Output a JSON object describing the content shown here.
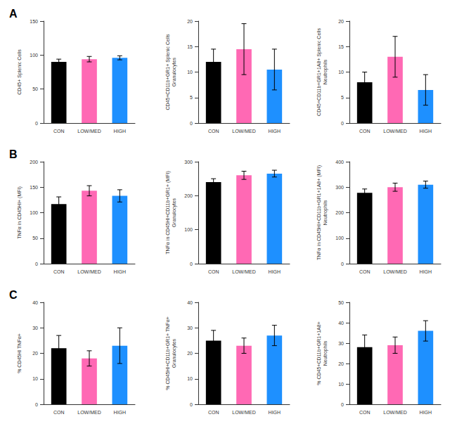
{
  "chart_data": [
    {
      "type": "bar",
      "annotation": "A",
      "ylabel": "CD45+ Splenic Cells",
      "categories": [
        "CON",
        "LOW/MED",
        "HIGH"
      ],
      "colors": [
        "#000000",
        "#FF69B4",
        "#1E90FF"
      ],
      "values": [
        90,
        94,
        96
      ],
      "errors": [
        4,
        4,
        3
      ],
      "ylim": [
        0,
        150
      ],
      "yticks": [
        0,
        50,
        100,
        150
      ],
      "grid": false
    },
    {
      "type": "bar",
      "ylabel": "CD45+CD11b+GR1+ Splenic Cells\nGranulocytes",
      "categories": [
        "CON",
        "LOW/MED",
        "HIGH"
      ],
      "colors": [
        "#000000",
        "#FF69B4",
        "#1E90FF"
      ],
      "values": [
        12,
        14.5,
        10.5
      ],
      "errors": [
        2.5,
        5,
        4
      ],
      "ylim": [
        0,
        20
      ],
      "yticks": [
        0,
        5,
        10,
        15,
        20
      ],
      "grid": false
    },
    {
      "type": "bar",
      "ylabel": "CD45+CD11b+GR1+1A8+ Splenic Cells\nNeutrophils",
      "categories": [
        "CON",
        "LOW/MED",
        "HIGH"
      ],
      "colors": [
        "#000000",
        "#FF69B4",
        "#1E90FF"
      ],
      "values": [
        8,
        13,
        6.5
      ],
      "errors": [
        2,
        4,
        3
      ],
      "ylim": [
        0,
        20
      ],
      "yticks": [
        0,
        5,
        10,
        15,
        20
      ],
      "grid": false
    },
    {
      "type": "bar",
      "annotation": "B",
      "ylabel": "TNFα in CD45HI+ (MFI)",
      "categories": [
        "CON",
        "LOW/MED",
        "HIGH"
      ],
      "colors": [
        "#000000",
        "#FF69B4",
        "#1E90FF"
      ],
      "values": [
        117,
        143,
        133
      ],
      "errors": [
        14,
        10,
        12
      ],
      "ylim": [
        0,
        200
      ],
      "yticks": [
        0,
        50,
        100,
        150,
        200
      ],
      "grid": false
    },
    {
      "type": "bar",
      "ylabel": "TNFα in CD45HI+CD11b+GR1+ (MFI)\nGranulocytes",
      "categories": [
        "CON",
        "LOW/MED",
        "HIGH"
      ],
      "colors": [
        "#000000",
        "#FF69B4",
        "#1E90FF"
      ],
      "values": [
        240,
        260,
        265
      ],
      "errors": [
        10,
        12,
        10
      ],
      "ylim": [
        0,
        300
      ],
      "yticks": [
        0,
        100,
        200,
        300
      ],
      "grid": false
    },
    {
      "type": "bar",
      "ylabel": "TNFα in CD45HI+CD11b+GR1+1A8+ (MFI)\nNeutrophils",
      "categories": [
        "CON",
        "LOW/MED",
        "HIGH"
      ],
      "colors": [
        "#000000",
        "#FF69B4",
        "#1E90FF"
      ],
      "values": [
        278,
        300,
        310
      ],
      "errors": [
        15,
        16,
        14
      ],
      "ylim": [
        0,
        400
      ],
      "yticks": [
        0,
        100,
        200,
        300,
        400
      ],
      "grid": false
    },
    {
      "type": "bar",
      "annotation": "C",
      "ylabel": "% CD45HI TNFα+",
      "categories": [
        "CON",
        "LOW/MED",
        "HIGH"
      ],
      "colors": [
        "#000000",
        "#FF69B4",
        "#1E90FF"
      ],
      "values": [
        22,
        18,
        23
      ],
      "errors": [
        5,
        3,
        7
      ],
      "ylim": [
        0,
        40
      ],
      "yticks": [
        0,
        10,
        20,
        30,
        40
      ],
      "grid": false
    },
    {
      "type": "bar",
      "ylabel": "% CD45HI+CD11b+GR1+ TNFα+\nGranulocytes",
      "categories": [
        "CON",
        "LOW/MED",
        "HIGH"
      ],
      "colors": [
        "#000000",
        "#FF69B4",
        "#1E90FF"
      ],
      "values": [
        25,
        23,
        27
      ],
      "errors": [
        4,
        3,
        4
      ],
      "ylim": [
        0,
        40
      ],
      "yticks": [
        0,
        10,
        20,
        30,
        40
      ],
      "grid": false
    },
    {
      "type": "bar",
      "ylabel": "% CD45+CD11b+GR1+1A8+\nNeutrophils",
      "categories": [
        "CON",
        "LOW/MED",
        "HIGH"
      ],
      "colors": [
        "#000000",
        "#FF69B4",
        "#1E90FF"
      ],
      "values": [
        28,
        29,
        36
      ],
      "errors": [
        6,
        4,
        5
      ],
      "ylim": [
        0,
        50
      ],
      "yticks": [
        0,
        10,
        20,
        30,
        40,
        50
      ],
      "grid": false
    }
  ]
}
